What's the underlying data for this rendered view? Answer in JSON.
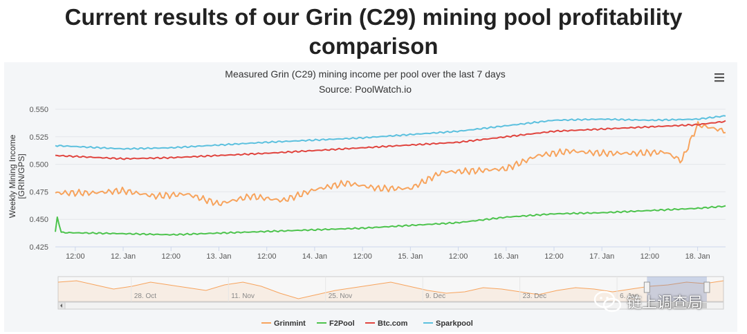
{
  "page": {
    "title_line1": "Current results of our Grin (C29) mining pool profitability",
    "title_line2": "comparison"
  },
  "watermark": {
    "text": "链上调查局"
  },
  "chart_data": {
    "type": "line",
    "title": "Measured Grin (C29) mining income per pool over the last 7 days",
    "subtitle": "Source: PoolWatch.io",
    "ylabel_line1": "Weekly Mining Income",
    "ylabel_line2": "[GRIN/GPS]",
    "xlabel": "",
    "ylim": [
      0.425,
      0.555
    ],
    "yticks": [
      "0.425",
      "0.450",
      "0.475",
      "0.500",
      "0.525",
      "0.550"
    ],
    "xlim": [
      "2019-01-11T07:00",
      "2019-01-18T07:00"
    ],
    "xticks": [
      "12:00",
      "12. Jan",
      "12:00",
      "13. Jan",
      "12:00",
      "14. Jan",
      "12:00",
      "15. Jan",
      "12:00",
      "16. Jan",
      "12:00",
      "17. Jan",
      "12:00",
      "18. Jan"
    ],
    "grid": true,
    "legend_position": "bottom",
    "series": [
      {
        "name": "Grinmint",
        "color": "#f7a35c",
        "x": [
          "2019-01-11T07:00",
          "2019-01-11T16:00",
          "2019-01-12T00:00",
          "2019-01-12T08:00",
          "2019-01-12T16:00",
          "2019-01-13T00:00",
          "2019-01-13T08:00",
          "2019-01-13T16:00",
          "2019-01-14T00:00",
          "2019-01-14T08:00",
          "2019-01-14T16:00",
          "2019-01-15T00:00",
          "2019-01-15T08:00",
          "2019-01-15T16:00",
          "2019-01-16T00:00",
          "2019-01-16T08:00",
          "2019-01-16T16:00",
          "2019-01-17T00:00",
          "2019-01-17T08:00",
          "2019-01-17T16:00",
          "2019-01-17T20:00",
          "2019-01-18T00:00",
          "2019-01-18T07:00"
        ],
        "y": [
          0.474,
          0.474,
          0.476,
          0.471,
          0.473,
          0.464,
          0.471,
          0.467,
          0.477,
          0.483,
          0.478,
          0.478,
          0.493,
          0.494,
          0.496,
          0.508,
          0.512,
          0.51,
          0.51,
          0.511,
          0.503,
          0.536,
          0.53
        ]
      },
      {
        "name": "F2Pool",
        "color": "#4cc34c",
        "x": [
          "2019-01-11T07:00",
          "2019-01-11T07:30",
          "2019-01-11T08:30",
          "2019-01-12T00:00",
          "2019-01-12T12:00",
          "2019-01-13T12:00",
          "2019-01-14T12:00",
          "2019-01-15T12:00",
          "2019-01-16T00:00",
          "2019-01-16T12:00",
          "2019-01-17T00:00",
          "2019-01-17T12:00",
          "2019-01-18T00:00",
          "2019-01-18T07:00"
        ],
        "y": [
          0.438,
          0.452,
          0.438,
          0.437,
          0.436,
          0.439,
          0.442,
          0.447,
          0.452,
          0.455,
          0.456,
          0.458,
          0.46,
          0.462
        ]
      },
      {
        "name": "Btc.com",
        "color": "#e0443e",
        "x": [
          "2019-01-11T07:00",
          "2019-01-12T00:00",
          "2019-01-12T12:00",
          "2019-01-13T12:00",
          "2019-01-14T12:00",
          "2019-01-15T12:00",
          "2019-01-16T00:00",
          "2019-01-16T12:00",
          "2019-01-17T00:00",
          "2019-01-17T12:00",
          "2019-01-18T00:00",
          "2019-01-18T07:00"
        ],
        "y": [
          0.508,
          0.505,
          0.506,
          0.51,
          0.515,
          0.52,
          0.525,
          0.53,
          0.532,
          0.534,
          0.536,
          0.539
        ]
      },
      {
        "name": "Sparkpool",
        "color": "#5bc0de",
        "x": [
          "2019-01-11T07:00",
          "2019-01-12T00:00",
          "2019-01-12T12:00",
          "2019-01-13T12:00",
          "2019-01-14T12:00",
          "2019-01-15T12:00",
          "2019-01-16T00:00",
          "2019-01-16T12:00",
          "2019-01-17T00:00",
          "2019-01-17T12:00",
          "2019-01-18T00:00",
          "2019-01-18T07:00"
        ],
        "y": [
          0.517,
          0.514,
          0.515,
          0.52,
          0.524,
          0.53,
          0.535,
          0.54,
          0.541,
          0.54,
          0.541,
          0.544
        ]
      }
    ],
    "navigator": {
      "xticks": [
        "28. Oct",
        "11. Nov",
        "25. Nov",
        "9. Dec",
        "23. Dec",
        "6. Jan"
      ],
      "y": [
        0.52,
        0.53,
        0.5,
        0.47,
        0.49,
        0.52,
        0.5,
        0.48,
        0.46,
        0.5,
        0.52,
        0.49,
        0.44,
        0.4,
        0.43,
        0.46,
        0.48,
        0.5,
        0.52,
        0.49,
        0.46,
        0.44,
        0.45,
        0.48,
        0.47,
        0.45,
        0.43,
        0.46,
        0.48,
        0.47,
        0.45,
        0.47,
        0.49,
        0.5,
        0.52,
        0.51,
        0.53
      ],
      "selected_fraction": [
        0.885,
        0.975
      ]
    }
  }
}
